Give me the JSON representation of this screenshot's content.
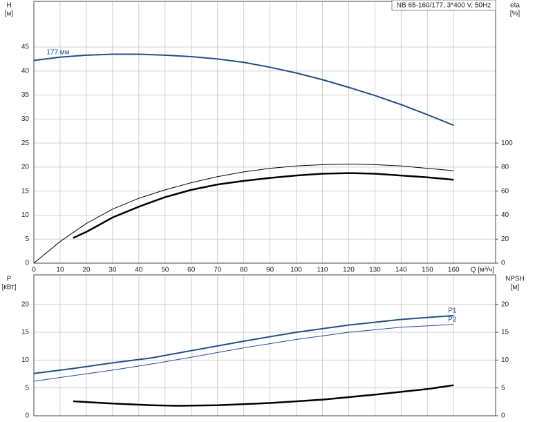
{
  "chart_data": [
    {
      "type": "line",
      "title": "NB 65-160/177, 3*400 V, 50Hz",
      "xlabel": "Q [м³/ч]",
      "ylabel": "H",
      "yunit": "[м]",
      "y2label": "eta",
      "y2unit": "[%]",
      "xlim": [
        0,
        176
      ],
      "xticks": [
        0,
        10,
        20,
        30,
        40,
        50,
        60,
        70,
        80,
        90,
        100,
        110,
        120,
        130,
        140,
        150,
        160
      ],
      "show_xtick_labels": true,
      "ylim": [
        0,
        54.5
      ],
      "yticks": [
        0,
        5,
        10,
        15,
        20,
        25,
        30,
        35,
        40,
        45
      ],
      "y2lim": [
        0,
        218
      ],
      "y2ticks": [
        0,
        20,
        40,
        60,
        80,
        100
      ],
      "grid": true,
      "series": [
        {
          "name": "177 мм",
          "label_position": "start",
          "color": "#1f4e8c",
          "width": 2,
          "x": [
            0,
            10,
            20,
            30,
            40,
            50,
            60,
            70,
            80,
            90,
            100,
            110,
            120,
            130,
            140,
            150,
            160
          ],
          "values": [
            42.2,
            42.9,
            43.3,
            43.5,
            43.5,
            43.3,
            43.0,
            42.5,
            41.8,
            40.8,
            39.6,
            38.2,
            36.6,
            34.9,
            33.0,
            30.9,
            28.7
          ]
        },
        {
          "axis": "y2",
          "color": "#000000",
          "width": 1,
          "x": [
            0,
            10,
            20,
            30,
            40,
            50,
            60,
            70,
            80,
            90,
            100,
            110,
            120,
            130,
            140,
            150,
            160
          ],
          "values": [
            0,
            18,
            33,
            45,
            54,
            61,
            67,
            72,
            76,
            79,
            81,
            82,
            82.5,
            82,
            81,
            79,
            77
          ]
        },
        {
          "axis": "y2",
          "color": "#000000",
          "width": 2.5,
          "x": [
            15,
            20,
            30,
            40,
            45,
            50,
            60,
            70,
            80,
            90,
            100,
            110,
            120,
            130,
            140,
            150,
            160
          ],
          "values": [
            21,
            26,
            38,
            47,
            51,
            55,
            61,
            65.5,
            68.5,
            71,
            73,
            74.5,
            75,
            74.5,
            73,
            71.5,
            69.5
          ]
        }
      ]
    },
    {
      "type": "line",
      "ylabel": "P",
      "yunit": "[кВт]",
      "y2label": "NPSH",
      "y2unit": "[м]",
      "xlim": [
        0,
        176
      ],
      "xticks": [
        0,
        10,
        20,
        30,
        40,
        50,
        60,
        70,
        80,
        90,
        100,
        110,
        120,
        130,
        140,
        150,
        160
      ],
      "show_xtick_labels": false,
      "ylim": [
        0,
        25.3
      ],
      "yticks": [
        0,
        5,
        10,
        15,
        20
      ],
      "y2lim": [
        0,
        25.3
      ],
      "y2ticks": [
        0,
        5,
        10,
        15,
        20
      ],
      "grid": true,
      "series": [
        {
          "name": "P1",
          "label_position": "end",
          "color": "#1f4e8c",
          "width": 2,
          "x": [
            0,
            15,
            30,
            45,
            60,
            80,
            100,
            120,
            140,
            160
          ],
          "values": [
            7.6,
            8.5,
            9.5,
            10.4,
            11.7,
            13.4,
            15.0,
            16.3,
            17.3,
            18.0
          ]
        },
        {
          "name": "P2",
          "label_position": "end",
          "color": "#1f4e8c",
          "width": 1,
          "x": [
            0,
            15,
            30,
            45,
            60,
            80,
            100,
            120,
            140,
            160
          ],
          "values": [
            6.2,
            7.2,
            8.2,
            9.3,
            10.5,
            12.2,
            13.7,
            15.0,
            15.9,
            16.4
          ]
        },
        {
          "axis": "y2",
          "color": "#000000",
          "width": 2.5,
          "x": [
            15,
            30,
            45,
            55,
            70,
            90,
            110,
            130,
            150,
            160
          ],
          "values": [
            2.6,
            2.2,
            1.9,
            1.8,
            1.9,
            2.3,
            2.9,
            3.8,
            4.8,
            5.5
          ]
        }
      ]
    }
  ]
}
